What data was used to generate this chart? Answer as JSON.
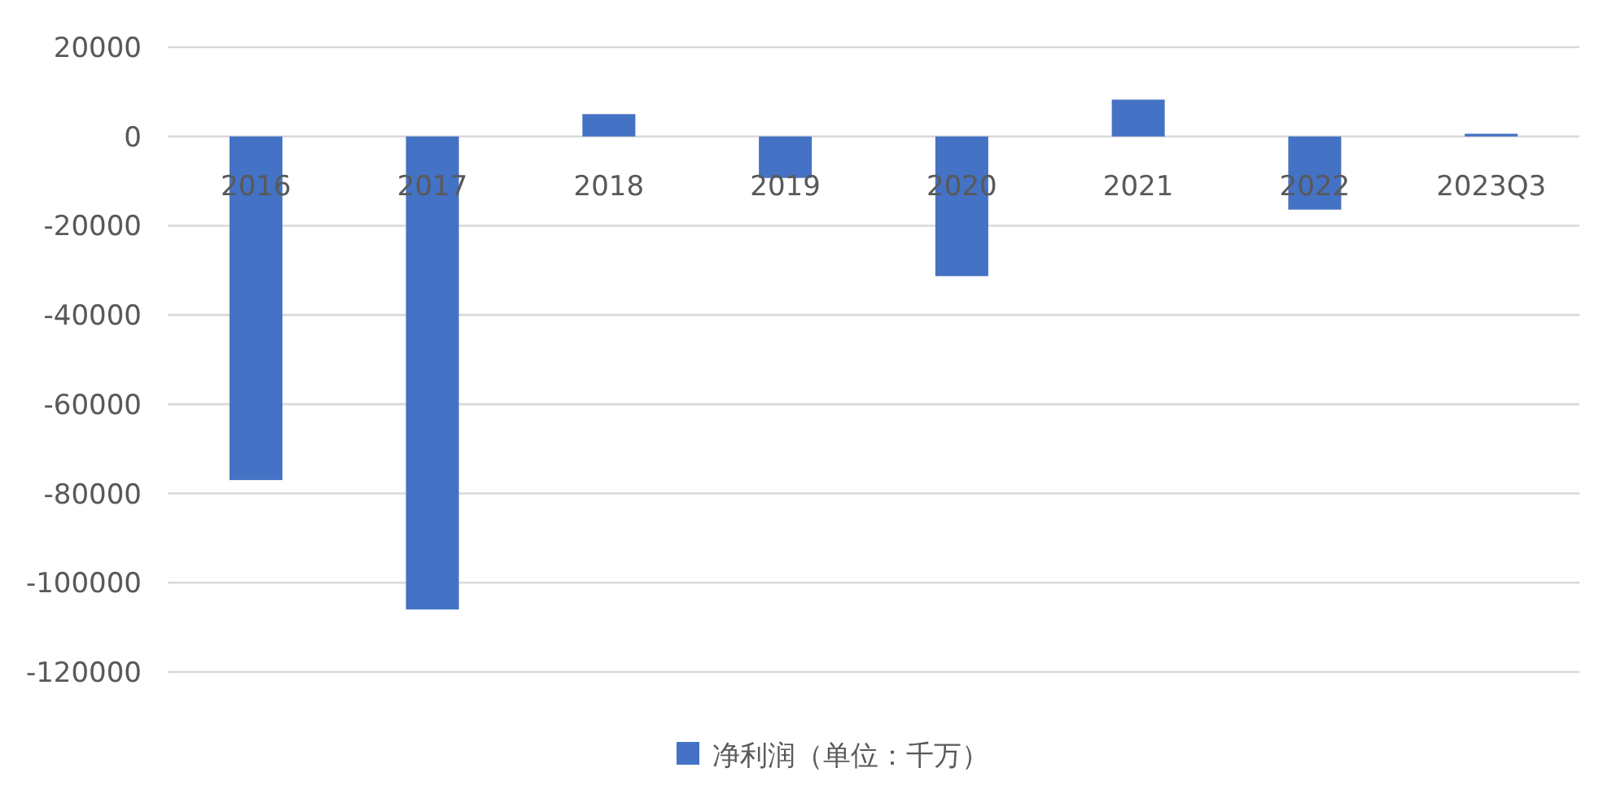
{
  "chart_data": {
    "type": "bar",
    "categories": [
      "2016",
      "2017",
      "2018",
      "2019",
      "2020",
      "2021",
      "2022",
      "2023Q3"
    ],
    "series": [
      {
        "name": "净利润（单位：千万）",
        "color": "#4472c4",
        "values": [
          -77000,
          -106000,
          5000,
          -9300,
          -31300,
          8250,
          -16400,
          600
        ]
      }
    ],
    "ylim": [
      -120000,
      20000
    ],
    "yticks": [
      -120000,
      -100000,
      -80000,
      -60000,
      -40000,
      -20000,
      0,
      20000
    ],
    "grid": "y",
    "legend": "bottom"
  }
}
